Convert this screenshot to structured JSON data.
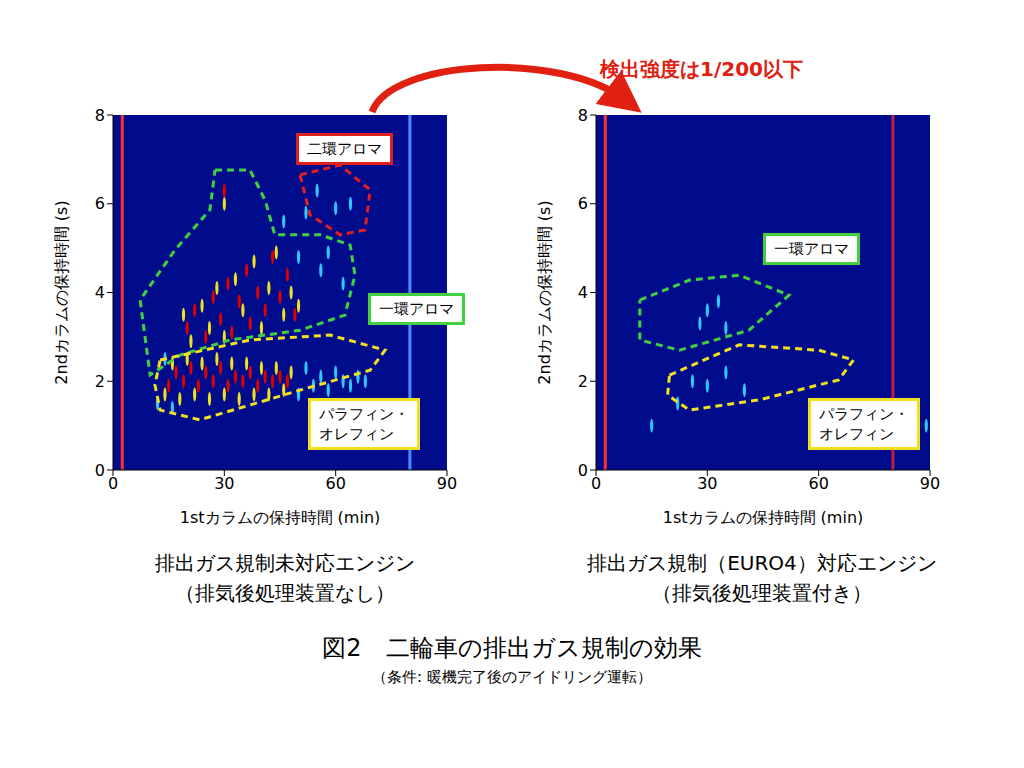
{
  "title": "図2　二輪車の排出ガス規制の効果",
  "note": "（条件: 暖機完了後のアイドリング運転）",
  "annotation": "検出強度は1/200以下",
  "chart_data": [
    {
      "type": "scatter",
      "subtitle": [
        "排出ガス規制未対応エンジン",
        "（排気後処理装置なし）"
      ],
      "x_label": "1stカラムの保持時間 (min)",
      "y_label": "2ndカラムの保持時間 (s)",
      "xlim": [
        0,
        90
      ],
      "xticks": [
        0,
        30,
        60,
        90
      ],
      "ylim": [
        0,
        8
      ],
      "yticks": [
        0,
        2,
        4,
        6,
        8
      ],
      "vlines": [
        {
          "x": 2.5,
          "color": "#ff3030"
        },
        {
          "x": 80,
          "color": "#4a8cff"
        }
      ],
      "peaks": [
        {
          "color": "#30c8ff",
          "x": [
            12,
            14,
            16,
            50,
            52,
            54,
            56,
            58,
            60,
            62,
            64,
            66,
            68,
            55,
            60,
            64,
            52,
            46,
            50,
            56,
            58,
            62
          ],
          "y": [
            1.5,
            2.5,
            1.4,
            1.7,
            2.3,
            1.9,
            2.1,
            1.8,
            2.2,
            2.0,
            1.9,
            2.1,
            2.0,
            6.3,
            5.9,
            6.0,
            5.8,
            5.6,
            4.8,
            4.5,
            4.9,
            4.2
          ]
        },
        {
          "color": "#f0e020",
          "x": [
            14,
            16,
            18,
            20,
            22,
            24,
            26,
            28,
            30,
            32,
            34,
            36,
            38,
            40,
            42,
            44,
            46,
            48,
            19,
            21,
            24,
            26,
            28,
            30,
            33,
            35,
            38,
            40,
            42,
            44,
            46,
            48,
            50,
            30
          ],
          "y": [
            1.7,
            2.4,
            1.6,
            2.5,
            1.7,
            2.4,
            1.6,
            2.5,
            1.7,
            2.4,
            1.6,
            2.4,
            1.7,
            2.3,
            1.7,
            2.3,
            1.8,
            2.2,
            3.5,
            2.9,
            3.7,
            3.2,
            4.1,
            3.0,
            4.3,
            3.6,
            4.7,
            3.2,
            4.1,
            4.9,
            3.5,
            4.0,
            3.7,
            6.0
          ]
        },
        {
          "color": "#e00000",
          "x": [
            15,
            17,
            19,
            21,
            23,
            25,
            27,
            29,
            31,
            33,
            35,
            37,
            39,
            41,
            43,
            45,
            47,
            20,
            22,
            25,
            27,
            29,
            31,
            32,
            34,
            36,
            37,
            39,
            41,
            43,
            45,
            47,
            49,
            30
          ],
          "y": [
            1.9,
            2.2,
            2.0,
            2.3,
            1.9,
            2.2,
            2.0,
            2.3,
            1.9,
            2.1,
            2.0,
            2.2,
            1.9,
            2.1,
            2.0,
            2.1,
            2.0,
            3.2,
            3.6,
            3.0,
            3.9,
            3.4,
            4.2,
            3.1,
            3.8,
            4.5,
            3.3,
            4.0,
            3.6,
            4.8,
            3.9,
            4.4,
            3.5,
            6.3
          ]
        }
      ],
      "regions": [
        {
          "label": "二環アロマ",
          "color": "#e02020",
          "points": [
            [
              50.4,
              6.65
            ],
            [
              61.2,
              6.87
            ],
            [
              69.3,
              6.31
            ],
            [
              67.9,
              5.41
            ],
            [
              61.2,
              5.3
            ],
            [
              53.1,
              5.75
            ]
          ]
        },
        {
          "label": "一環アロマ",
          "color": "#40d040",
          "points": [
            [
              27.5,
              6.76
            ],
            [
              36.9,
              6.76
            ],
            [
              41,
              6.08
            ],
            [
              43.6,
              5.3
            ],
            [
              55.8,
              5.3
            ],
            [
              63.9,
              5.07
            ],
            [
              65.2,
              4.39
            ],
            [
              62.5,
              3.49
            ],
            [
              50.4,
              3.15
            ],
            [
              31.5,
              2.93
            ],
            [
              18.1,
              2.59
            ],
            [
              10,
              2.14
            ],
            [
              7.3,
              3.83
            ],
            [
              16.7,
              4.96
            ],
            [
              26.1,
              5.86
            ]
          ]
        },
        {
          "label": "パラフィン・\nオレフィン",
          "color": "#f0e020",
          "points": [
            [
              12.7,
              2.48
            ],
            [
              36.9,
              2.93
            ],
            [
              58.5,
              3.04
            ],
            [
              73.3,
              2.7
            ],
            [
              69.3,
              2.25
            ],
            [
              50.4,
              1.8
            ],
            [
              23.4,
              1.13
            ],
            [
              12.7,
              1.35
            ],
            [
              11.3,
              1.92
            ]
          ]
        }
      ]
    },
    {
      "type": "scatter",
      "subtitle": [
        "排出ガス規制（EURO4）対応エンジン",
        "（排気後処理装置付き）"
      ],
      "x_label": "1stカラムの保持時間 (min)",
      "y_label": "2ndカラムの保持時間 (s)",
      "xlim": [
        0,
        90
      ],
      "xticks": [
        0,
        30,
        60,
        90
      ],
      "ylim": [
        0,
        8
      ],
      "yticks": [
        0,
        2,
        4,
        6,
        8
      ],
      "vlines": [
        {
          "x": 2.5,
          "color": "#ff3030"
        },
        {
          "x": 80,
          "color": "#c02040"
        }
      ],
      "peaks": [
        {
          "color": "#30c8ff",
          "x": [
            28,
            30,
            33,
            35,
            26,
            30,
            35,
            40,
            15,
            22,
            89
          ],
          "y": [
            3.3,
            3.6,
            3.8,
            3.2,
            2.0,
            1.9,
            2.2,
            1.8,
            1.0,
            1.5,
            1.0
          ]
        }
      ],
      "regions": [
        {
          "label": "一環アロマ",
          "color": "#40d040",
          "points": [
            [
              11.8,
              3.83
            ],
            [
              25.2,
              4.28
            ],
            [
              38.6,
              4.39
            ],
            [
              52,
              3.94
            ],
            [
              41.2,
              3.15
            ],
            [
              22.5,
              2.7
            ],
            [
              11.8,
              2.93
            ]
          ]
        },
        {
          "label": "パラフィン・\nオレフィン",
          "color": "#f0e020",
          "points": [
            [
              19.8,
              2.14
            ],
            [
              38.6,
              2.82
            ],
            [
              60,
              2.7
            ],
            [
              69.4,
              2.48
            ],
            [
              65.4,
              2.03
            ],
            [
              43.9,
              1.58
            ],
            [
              25.2,
              1.35
            ],
            [
              19.3,
              1.69
            ]
          ]
        }
      ]
    }
  ]
}
